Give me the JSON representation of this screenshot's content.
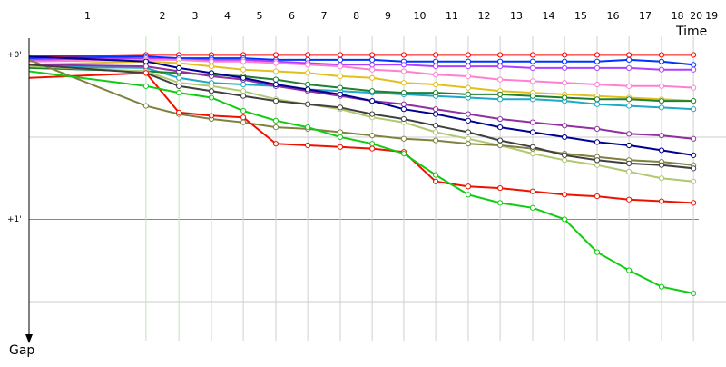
{
  "chart_data": {
    "type": "line",
    "x_label": "Time",
    "y_label": "Gap",
    "lap_labels": [
      "1",
      "2",
      "3",
      "4",
      "5",
      "6",
      "7",
      "8",
      "9",
      "10",
      "11",
      "12",
      "13",
      "14",
      "15",
      "16",
      "17",
      "18",
      "20",
      "19"
    ],
    "x": [
      0,
      3.63,
      4.65,
      5.66,
      6.65,
      7.66,
      8.65,
      9.66,
      10.65,
      11.63,
      12.62,
      13.63,
      14.62,
      15.63,
      16.62,
      17.63,
      18.62,
      19.63,
      20.62
    ],
    "xlim": [
      0,
      21.63
    ],
    "ylim": [
      -0.15,
      1.75
    ],
    "yticks": [
      {
        "value": 0,
        "label": "+0'"
      },
      {
        "value": 1,
        "label": "+1'"
      }
    ],
    "minor_yticks": [
      0.5,
      1.5
    ],
    "grid": true,
    "series": [
      {
        "color": "#ff0000",
        "values": [
          0.01,
          0,
          0,
          0,
          0,
          0,
          0,
          0,
          0,
          0,
          0,
          0,
          0,
          0,
          0,
          0,
          0,
          0,
          0
        ]
      },
      {
        "color": "#0033ff",
        "values": [
          0.02,
          0.01,
          0.02,
          0.02,
          0.02,
          0.03,
          0.03,
          0.03,
          0.03,
          0.04,
          0.04,
          0.04,
          0.04,
          0.04,
          0.04,
          0.04,
          0.03,
          0.04,
          0.06
        ]
      },
      {
        "color": "#b040ff",
        "values": [
          0.03,
          0.02,
          0.03,
          0.03,
          0.03,
          0.04,
          0.05,
          0.06,
          0.06,
          0.06,
          0.07,
          0.07,
          0.07,
          0.08,
          0.08,
          0.08,
          0.08,
          0.09,
          0.09
        ]
      },
      {
        "color": "#ff80d0",
        "values": [
          0.04,
          0.03,
          0.03,
          0.04,
          0.04,
          0.05,
          0.06,
          0.07,
          0.09,
          0.1,
          0.12,
          0.13,
          0.15,
          0.16,
          0.17,
          0.18,
          0.19,
          0.19,
          0.2
        ]
      },
      {
        "color": "#e0c020",
        "values": [
          0.06,
          0.04,
          0.05,
          0.07,
          0.09,
          0.1,
          0.11,
          0.13,
          0.14,
          0.17,
          0.18,
          0.2,
          0.22,
          0.23,
          0.24,
          0.25,
          0.26,
          0.27,
          0.28
        ]
      },
      {
        "color": "#20a8c8",
        "values": [
          0.07,
          0.08,
          0.14,
          0.17,
          0.18,
          0.19,
          0.21,
          0.22,
          0.23,
          0.24,
          0.25,
          0.26,
          0.27,
          0.27,
          0.28,
          0.3,
          0.31,
          0.32,
          0.33
        ]
      },
      {
        "color": "#208030",
        "values": [
          0.08,
          0.1,
          0.11,
          0.12,
          0.13,
          0.15,
          0.18,
          0.2,
          0.22,
          0.23,
          0.23,
          0.24,
          0.24,
          0.25,
          0.26,
          0.27,
          0.27,
          0.28,
          0.28
        ]
      },
      {
        "color": "#9030a0",
        "values": [
          0.06,
          0.07,
          0.1,
          0.13,
          0.15,
          0.19,
          0.22,
          0.25,
          0.28,
          0.3,
          0.33,
          0.36,
          0.39,
          0.41,
          0.43,
          0.45,
          0.48,
          0.49,
          0.51
        ]
      },
      {
        "color": "#000090",
        "values": [
          0.01,
          0.04,
          0.08,
          0.11,
          0.14,
          0.18,
          0.21,
          0.24,
          0.28,
          0.33,
          0.36,
          0.4,
          0.44,
          0.47,
          0.5,
          0.53,
          0.55,
          0.58,
          0.61
        ]
      },
      {
        "color": "#b0c870",
        "values": [
          0.07,
          0.1,
          0.17,
          0.19,
          0.22,
          0.27,
          0.3,
          0.33,
          0.38,
          0.41,
          0.47,
          0.51,
          0.55,
          0.6,
          0.64,
          0.67,
          0.71,
          0.75,
          0.77
        ]
      },
      {
        "color": "#808040",
        "values": [
          0.03,
          0.31,
          0.36,
          0.39,
          0.41,
          0.44,
          0.45,
          0.47,
          0.49,
          0.51,
          0.52,
          0.54,
          0.55,
          0.57,
          0.6,
          0.62,
          0.64,
          0.65,
          0.67
        ]
      },
      {
        "color": "#404040",
        "values": [
          0.06,
          0.11,
          0.19,
          0.22,
          0.25,
          0.28,
          0.3,
          0.32,
          0.36,
          0.39,
          0.43,
          0.47,
          0.52,
          0.56,
          0.61,
          0.64,
          0.66,
          0.67,
          0.69
        ]
      },
      {
        "color": "#ee1100",
        "values": [
          0.14,
          0.11,
          0.35,
          0.37,
          0.38,
          0.54,
          0.55,
          0.56,
          0.57,
          0.59,
          0.77,
          0.8,
          0.81,
          0.83,
          0.85,
          0.86,
          0.88,
          0.89,
          0.9
        ]
      },
      {
        "color": "#10cc10",
        "values": [
          0.1,
          0.19,
          0.23,
          0.26,
          0.34,
          0.4,
          0.44,
          0.5,
          0.54,
          0.6,
          0.73,
          0.85,
          0.9,
          0.93,
          1.0,
          1.2,
          1.31,
          1.41,
          1.45
        ]
      }
    ]
  }
}
